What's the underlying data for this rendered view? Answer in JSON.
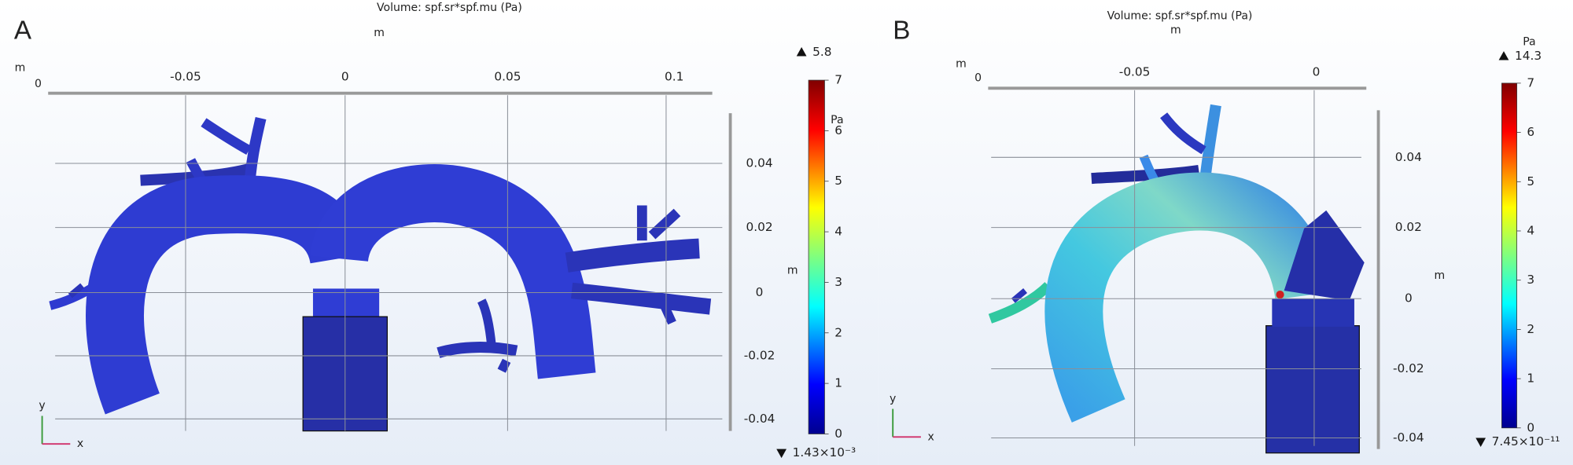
{
  "panels": [
    {
      "label": "A",
      "title": "Volume: spf.sr*spf.mu (Pa)",
      "x_unit": "m",
      "corner_unit": "m",
      "corner_value": "0",
      "x_ticks": [
        "-0.05",
        "0",
        "0.05",
        "0.1"
      ],
      "y_ticks": [
        "0.04",
        "0.02",
        "0",
        "-0.02",
        "-0.04"
      ],
      "y_unit": "m",
      "colorbar": {
        "unit": "Pa",
        "max": "5.8",
        "min": "1.43×10⁻³",
        "ticks": [
          "7",
          "6",
          "5",
          "4",
          "3",
          "2",
          "1",
          "0"
        ]
      },
      "triad": {
        "x": "x",
        "y": "y"
      }
    },
    {
      "label": "B",
      "title": "Volume: spf.sr*spf.mu (Pa)",
      "x_unit": "m",
      "corner_unit": "m",
      "corner_value": "0",
      "x_ticks": [
        "-0.05",
        "0"
      ],
      "y_ticks": [
        "0.04",
        "0.02",
        "0",
        "-0.02",
        "-0.04"
      ],
      "y_unit": "m",
      "colorbar": {
        "unit": "Pa",
        "max": "14.3",
        "min": "7.45×10⁻¹¹",
        "ticks": [
          "7",
          "6",
          "5",
          "4",
          "3",
          "2",
          "1",
          "0"
        ]
      },
      "triad": {
        "x": "x",
        "y": "y"
      }
    }
  ]
}
